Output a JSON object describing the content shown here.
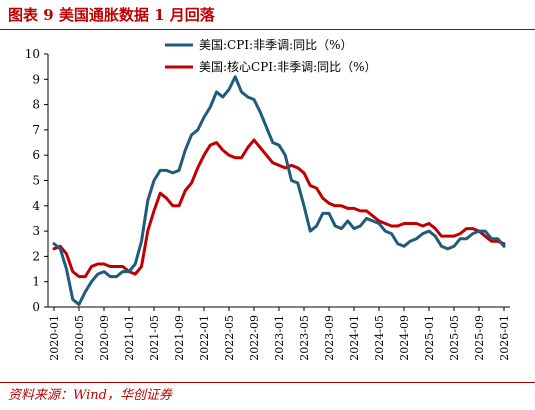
{
  "header": {
    "title": "图表 9   美国通胀数据 1 月回落"
  },
  "footer": {
    "source": "资料来源：Wind，华创证券"
  },
  "colors": {
    "cpi": "#1f5b7a",
    "core": "#c00000",
    "title": "#c00000"
  },
  "chart_data": {
    "type": "line",
    "title": "",
    "xlabel": "",
    "ylabel": "",
    "ylim": [
      0,
      10
    ],
    "yticks": [
      0,
      1,
      2,
      3,
      4,
      5,
      6,
      7,
      8,
      9,
      10
    ],
    "grid": false,
    "legend_position": "top-center",
    "x_tick_labels": [
      "2020-01",
      "2020-05",
      "2020-09",
      "2021-01",
      "2021-05",
      "2021-09",
      "2022-01",
      "2022-05",
      "2022-09",
      "2023-01",
      "2023-05",
      "2023-09",
      "2024-01",
      "2024-05",
      "2024-09",
      "2025-01",
      "2025-05",
      "2025-09",
      "2026-01"
    ],
    "x_start": "2020-01",
    "x_end": "2026-01",
    "series": [
      {
        "name": "美国:CPI:非季调:同比（%）",
        "color": "#1f5b7a",
        "values": [
          2.5,
          2.3,
          1.5,
          0.3,
          0.1,
          0.6,
          1.0,
          1.3,
          1.4,
          1.2,
          1.2,
          1.4,
          1.4,
          1.7,
          2.6,
          4.2,
          5.0,
          5.4,
          5.4,
          5.3,
          5.4,
          6.2,
          6.8,
          7.0,
          7.5,
          7.9,
          8.5,
          8.3,
          8.6,
          9.1,
          8.5,
          8.3,
          8.2,
          7.7,
          7.1,
          6.5,
          6.4,
          6.0,
          5.0,
          4.9,
          4.0,
          3.0,
          3.2,
          3.7,
          3.7,
          3.2,
          3.1,
          3.4,
          3.1,
          3.2,
          3.5,
          3.4,
          3.3,
          3.0,
          2.9,
          2.5,
          2.4,
          2.6,
          2.7,
          2.9,
          3.0,
          2.8,
          2.4,
          2.3,
          2.4,
          2.7,
          2.7,
          2.9,
          3.0,
          3.0,
          2.7,
          2.7,
          2.4
        ]
      },
      {
        "name": "美国:核心CPI:非季调:同比（%）",
        "color": "#c00000",
        "values": [
          2.3,
          2.4,
          2.1,
          1.4,
          1.2,
          1.2,
          1.6,
          1.7,
          1.7,
          1.6,
          1.6,
          1.6,
          1.4,
          1.3,
          1.6,
          3.0,
          3.8,
          4.5,
          4.3,
          4.0,
          4.0,
          4.6,
          4.9,
          5.5,
          6.0,
          6.4,
          6.5,
          6.2,
          6.0,
          5.9,
          5.9,
          6.3,
          6.6,
          6.3,
          6.0,
          5.7,
          5.6,
          5.5,
          5.6,
          5.5,
          5.3,
          4.8,
          4.7,
          4.3,
          4.1,
          4.0,
          4.0,
          3.9,
          3.9,
          3.8,
          3.8,
          3.6,
          3.4,
          3.3,
          3.2,
          3.2,
          3.3,
          3.3,
          3.3,
          3.2,
          3.3,
          3.1,
          2.8,
          2.8,
          2.8,
          2.9,
          3.1,
          3.1,
          3.0,
          2.8,
          2.6,
          2.6,
          2.5
        ]
      }
    ]
  }
}
